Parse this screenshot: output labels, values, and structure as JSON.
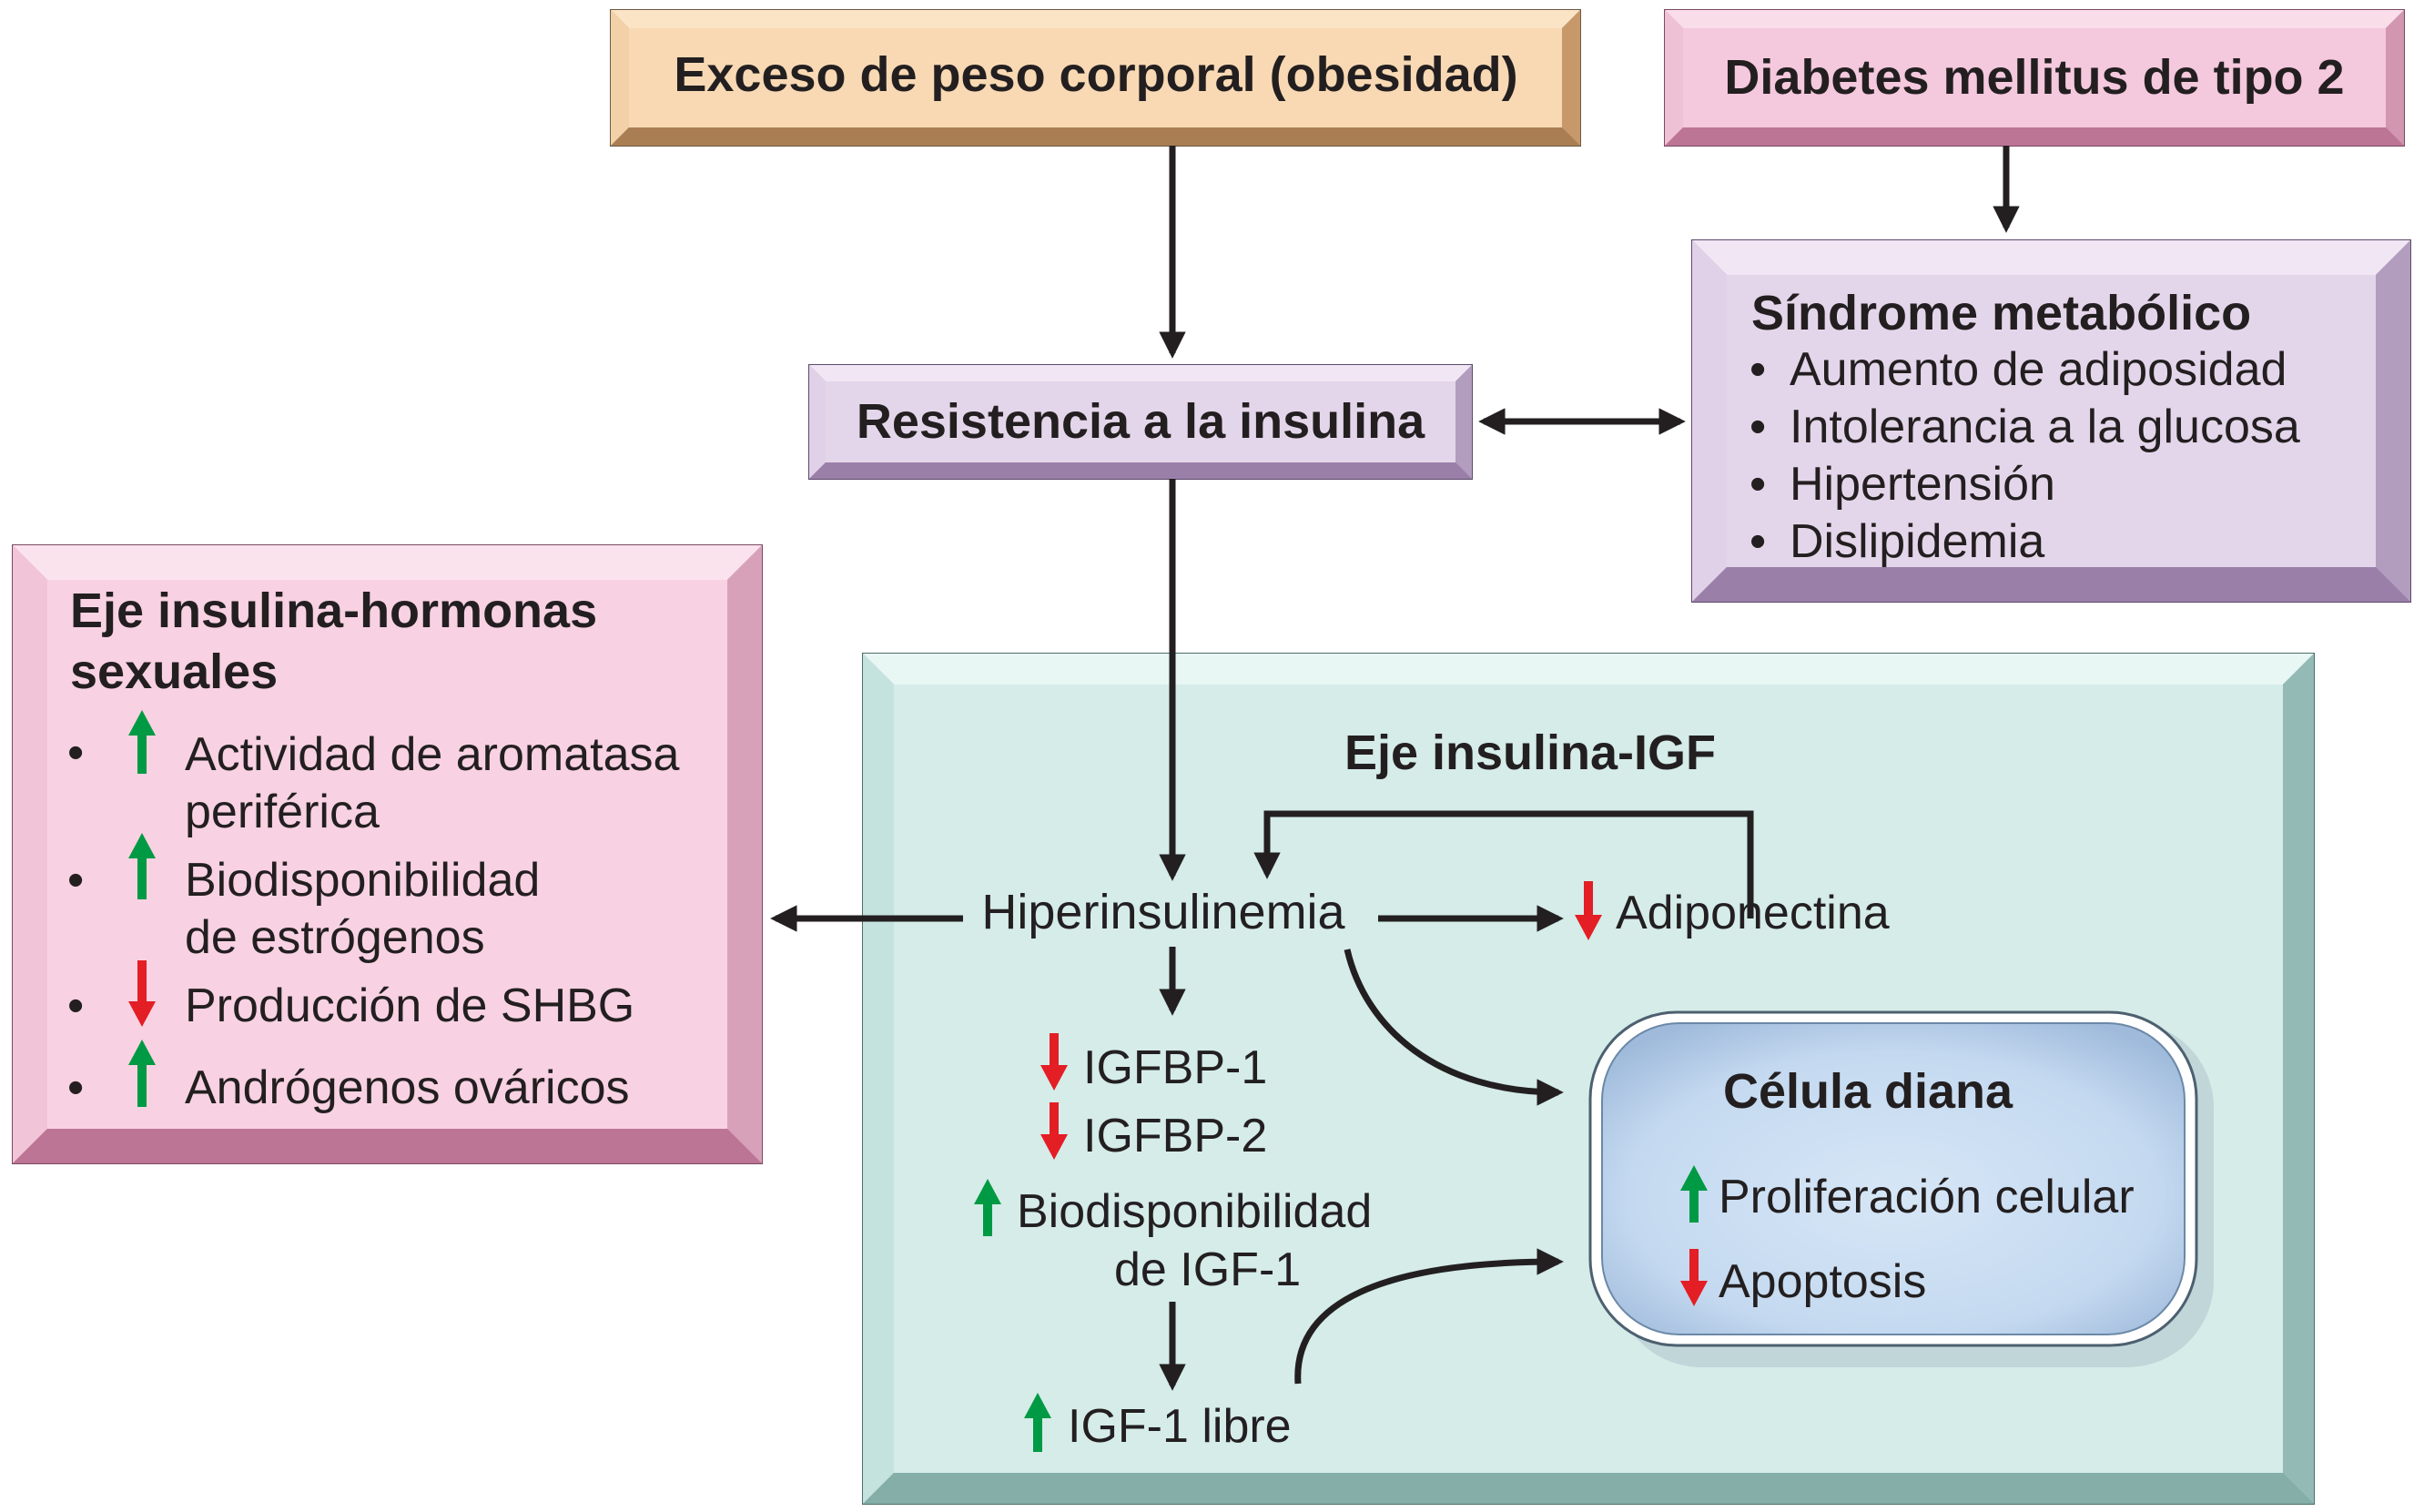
{
  "obesity_box": {
    "label": "Exceso de peso corporal (obesidad)"
  },
  "diabetes_box": {
    "label": "Diabetes mellitus de tipo 2"
  },
  "insulin_resistance_box": {
    "label": "Resistencia a la insulina"
  },
  "metabolic_syndrome_box": {
    "title": "Síndrome metabólico",
    "items": [
      "Aumento de adiposidad",
      "Intolerancia a la glucosa",
      "Hipertensión",
      "Dislipidemia"
    ]
  },
  "sex_hormone_axis_box": {
    "title_line1": "Eje insulina-hormonas",
    "title_line2": "sexuales",
    "items": [
      {
        "line1": "Actividad de aromatasa",
        "line2": "periférica",
        "direction": "up"
      },
      {
        "line1": "Biodisponibilidad",
        "line2": "de estrógenos",
        "direction": "up"
      },
      {
        "line1": "Producción de SHBG",
        "line2": "",
        "direction": "down"
      },
      {
        "line1": "Andrógenos ováricos",
        "line2": "",
        "direction": "up"
      }
    ]
  },
  "igf_axis_box": {
    "title": "Eje insulina-IGF",
    "hyperinsulinemia": "Hiperinsulinemia",
    "adiponectin": {
      "label": "Adiponectina",
      "direction": "down"
    },
    "igfbp1": {
      "label": "IGFBP-1",
      "direction": "down"
    },
    "igfbp2": {
      "label": "IGFBP-2",
      "direction": "down"
    },
    "igf1_bioavailability": {
      "line1": "Biodisponibilidad",
      "line2": "de IGF-1",
      "direction": "up"
    },
    "free_igf1": {
      "label": "IGF-1 libre",
      "direction": "up"
    }
  },
  "target_cell": {
    "title": "Célula diana",
    "proliferation": {
      "label": "Proliferación celular",
      "direction": "up"
    },
    "apoptosis": {
      "label": "Apoptosis",
      "direction": "down"
    }
  },
  "bullet": "•",
  "colors": {
    "up_arrow": "#009a44",
    "down_arrow": "#e31e24",
    "obesity_fill": "#f8d9b4",
    "diabetes_fill": "#f4c8dd",
    "purple_fill": "#e4d6ea",
    "pink_fill": "#f8d2e2",
    "teal_fill": "#d5ece9",
    "cell_fill": "#c9ddf2"
  }
}
